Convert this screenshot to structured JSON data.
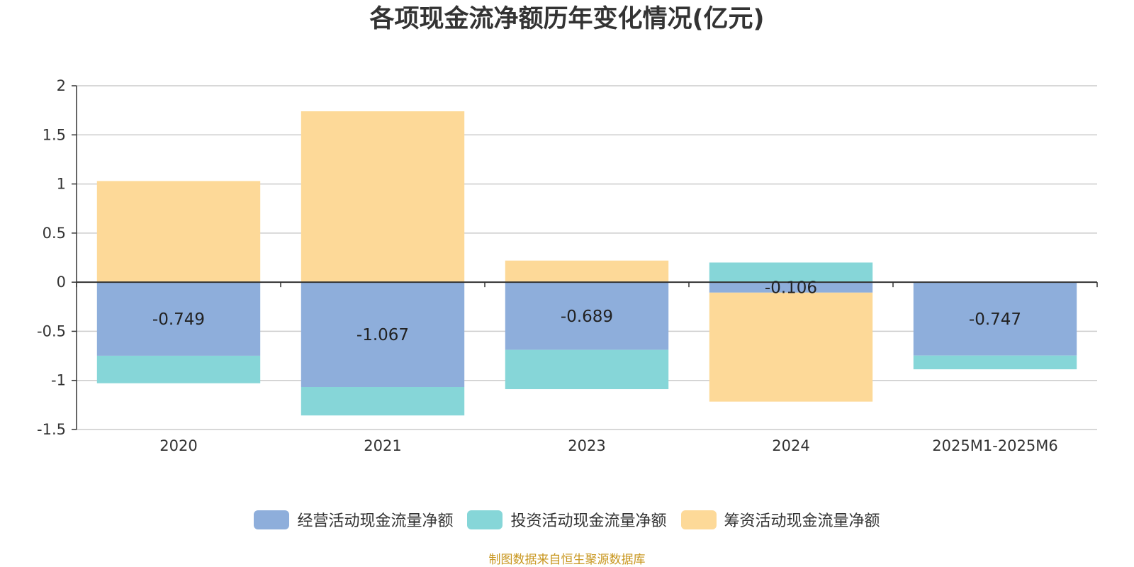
{
  "chart_data": {
    "type": "bar",
    "stacked": true,
    "title": "各项现金流净额历年变化情况(亿元)",
    "categories": [
      "2020",
      "2021",
      "2023",
      "2024",
      "2025M1-2025M6"
    ],
    "series": [
      {
        "name": "经营活动现金流量净额",
        "color": "#8eaedb",
        "values": [
          -0.749,
          -1.067,
          -0.689,
          -0.106,
          -0.747
        ],
        "labels": [
          "-0.749",
          "-1.067",
          "-0.689",
          "-0.106",
          "-0.747"
        ]
      },
      {
        "name": "投资活动现金流量净额",
        "color": "#86d6d8",
        "values": [
          -0.28,
          -0.29,
          -0.4,
          0.2,
          -0.14
        ]
      },
      {
        "name": "筹资活动现金流量净额",
        "color": "#fdd998",
        "values": [
          1.03,
          1.74,
          0.22,
          -1.11,
          0
        ]
      }
    ],
    "yticks": [
      "2",
      "1.5",
      "1",
      "0.5",
      "0",
      "-0.5",
      "-1",
      "-1.5"
    ],
    "ylim": [
      -1.5,
      2
    ],
    "grid": true,
    "legend_position": "bottom-center"
  },
  "source": "制图数据来自恒生聚源数据库"
}
